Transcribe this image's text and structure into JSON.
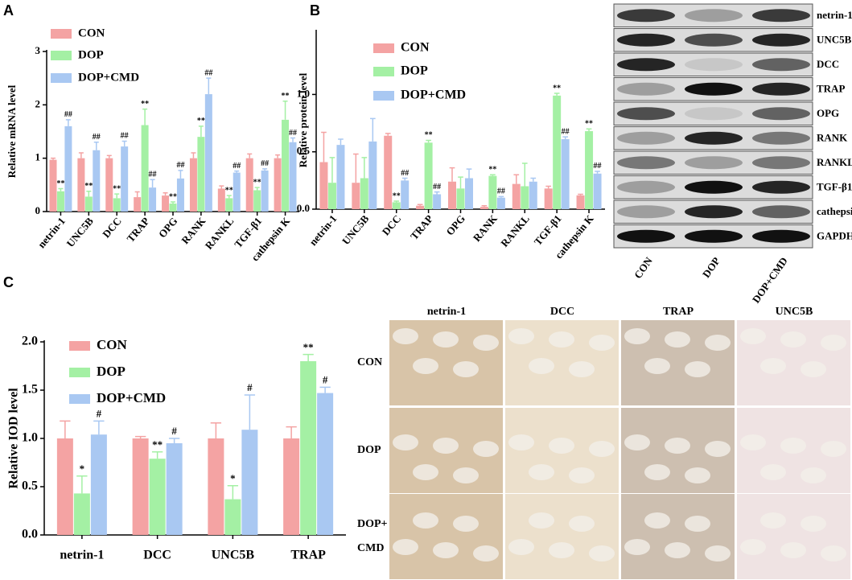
{
  "chart_data": [
    {
      "type": "bar",
      "panel": "A",
      "ylabel": "Relative mRNA level",
      "categories": [
        "netrin-1",
        "UNC5B",
        "DCC",
        "TRAP",
        "OPG",
        "RANK",
        "RANKL",
        "TGF-β1",
        "cathepsin K"
      ],
      "ylim": [
        0,
        3
      ],
      "yticks": [
        0,
        1,
        2,
        3
      ],
      "series": [
        {
          "name": "CON",
          "color": "#f4a3a3",
          "values": [
            0.97,
            1.0,
            1.0,
            0.27,
            0.3,
            1.0,
            0.43,
            1.0,
            1.0
          ],
          "errors": [
            0.03,
            0.1,
            0.05,
            0.1,
            0.05,
            0.1,
            0.05,
            0.08,
            0.06
          ],
          "annotations": [
            null,
            null,
            null,
            null,
            null,
            null,
            null,
            null,
            null
          ]
        },
        {
          "name": "DOP",
          "color": "#a4f0a4",
          "values": [
            0.38,
            0.28,
            0.25,
            1.62,
            0.15,
            1.4,
            0.25,
            0.4,
            1.72
          ],
          "errors": [
            0.05,
            0.1,
            0.08,
            0.3,
            0.03,
            0.2,
            0.05,
            0.05,
            0.35
          ],
          "annotations": [
            "**",
            "**",
            "**",
            "**",
            "**",
            "**",
            "**",
            "**",
            "**"
          ]
        },
        {
          "name": "DOP+CMD",
          "color": "#a9c8f2",
          "values": [
            1.6,
            1.15,
            1.22,
            0.45,
            0.62,
            2.2,
            0.73,
            0.77,
            1.3
          ],
          "errors": [
            0.12,
            0.15,
            0.1,
            0.15,
            0.15,
            0.3,
            0.03,
            0.03,
            0.08
          ],
          "annotations": [
            "##",
            "##",
            "##",
            "##",
            "##",
            "##",
            "##",
            "##",
            "##"
          ]
        }
      ]
    },
    {
      "type": "bar",
      "panel": "B",
      "ylabel": "Relative protein level",
      "categories": [
        "netrin-1",
        "UNC5B",
        "DCC",
        "TRAP",
        "OPG",
        "RANK",
        "RANKL",
        "TGF-β1",
        "cathepsin K"
      ],
      "ylim": [
        0,
        1.55
      ],
      "yticks": [
        {
          "value": 0,
          "label": "0.0"
        },
        0.5,
        {
          "value": 1,
          "label": "1.0"
        }
      ],
      "series": [
        {
          "name": "CON",
          "color": "#f4a3a3",
          "values": [
            0.41,
            0.23,
            0.64,
            0.03,
            0.24,
            0.02,
            0.22,
            0.18,
            0.12
          ],
          "errors": [
            0.26,
            0.25,
            0.02,
            0.01,
            0.12,
            0.01,
            0.08,
            0.02,
            0.01
          ],
          "annotations": [
            null,
            null,
            null,
            null,
            null,
            null,
            null,
            null,
            null
          ]
        },
        {
          "name": "DOP",
          "color": "#a4f0a4",
          "values": [
            0.23,
            0.27,
            0.06,
            0.58,
            0.18,
            0.29,
            0.2,
            0.99,
            0.68
          ],
          "errors": [
            0.22,
            0.18,
            0.01,
            0.02,
            0.1,
            0.01,
            0.2,
            0.02,
            0.02
          ],
          "annotations": [
            null,
            null,
            "**",
            "**",
            null,
            "**",
            null,
            "**",
            "**"
          ]
        },
        {
          "name": "DOP+CMD",
          "color": "#a9c8f2",
          "values": [
            0.56,
            0.59,
            0.25,
            0.13,
            0.27,
            0.1,
            0.24,
            0.61,
            0.31
          ],
          "errors": [
            0.05,
            0.2,
            0.02,
            0.02,
            0.08,
            0.01,
            0.03,
            0.02,
            0.02
          ],
          "annotations": [
            null,
            null,
            "##",
            "##",
            null,
            "##",
            null,
            "##",
            "##"
          ]
        }
      ]
    },
    {
      "type": "bar",
      "panel": "C",
      "ylabel": "Relative IOD level",
      "categories": [
        "netrin-1",
        "DCC",
        "UNC5B",
        "TRAP"
      ],
      "ylim": [
        0,
        2.0
      ],
      "yticks": [
        {
          "value": 0,
          "label": "0.0"
        },
        0.5,
        {
          "value": 1,
          "label": "1.0"
        },
        1.5,
        {
          "value": 2,
          "label": "2.0"
        }
      ],
      "series": [
        {
          "name": "CON",
          "color": "#f4a3a3",
          "values": [
            1.0,
            1.0,
            1.0,
            1.0
          ],
          "errors": [
            0.18,
            0.02,
            0.16,
            0.12
          ],
          "annotations": [
            null,
            null,
            null,
            null
          ]
        },
        {
          "name": "DOP",
          "color": "#a4f0a4",
          "values": [
            0.43,
            0.79,
            0.37,
            1.8
          ],
          "errors": [
            0.18,
            0.07,
            0.14,
            0.07
          ],
          "annotations": [
            "*",
            "**",
            "*",
            "**"
          ]
        },
        {
          "name": "DOP+CMD",
          "color": "#a9c8f2",
          "values": [
            1.04,
            0.95,
            1.09,
            1.47
          ],
          "errors": [
            0.14,
            0.05,
            0.36,
            0.06
          ],
          "annotations": [
            "#",
            "#",
            "#",
            "#"
          ]
        }
      ]
    }
  ],
  "blot": {
    "rows": [
      "netrin-1",
      "UNC5B",
      "DCC",
      "TRAP",
      "OPG",
      "RANK",
      "RANKL",
      "TGF-β1",
      "cathepsin K",
      "GAPDH"
    ],
    "columns": [
      "CON",
      "DOP",
      "DOP+CMD"
    ]
  },
  "ihc": {
    "columns": [
      "netrin-1",
      "DCC",
      "TRAP",
      "UNC5B"
    ],
    "rows": [
      [
        "CON"
      ],
      [
        "DOP"
      ],
      [
        "DOP+",
        "CMD"
      ]
    ]
  }
}
